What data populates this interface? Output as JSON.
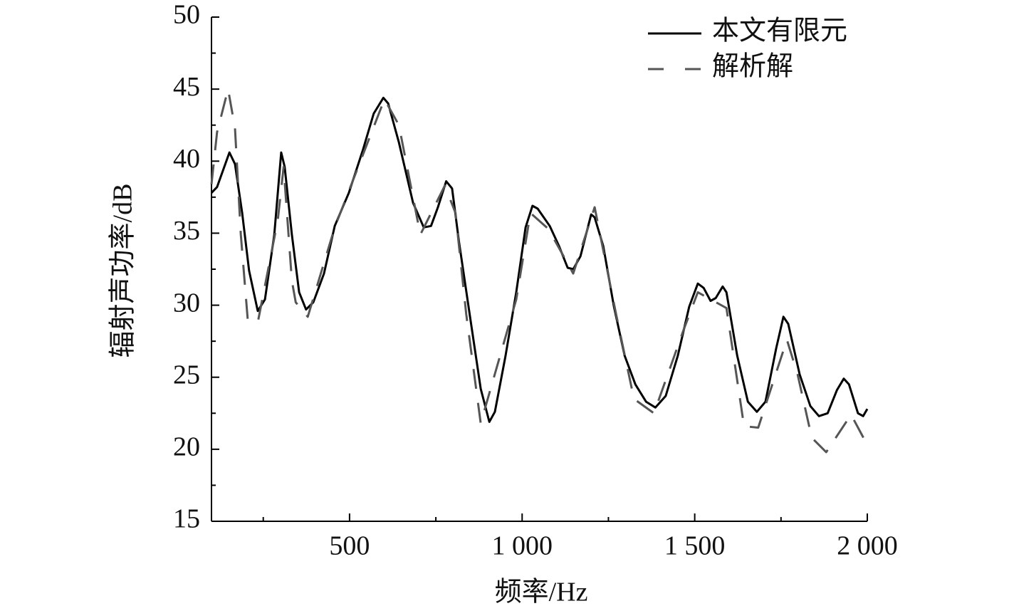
{
  "chart_data": {
    "type": "line",
    "xlabel": "频率/Hz",
    "ylabel": "辐射声功率/dB",
    "xlim": [
      100,
      2000
    ],
    "ylim": [
      15,
      50
    ],
    "xticks": [
      500,
      {
        "value": 1000,
        "label": "1 000"
      },
      {
        "value": 1500,
        "label": "1 500"
      },
      {
        "value": 2000,
        "label": "2 000"
      }
    ],
    "xminorticks": [
      250,
      750,
      1250,
      1750
    ],
    "yticks": [
      15,
      20,
      25,
      30,
      35,
      40,
      45,
      50
    ],
    "yminorticks": [
      17.5,
      22.5,
      27.5,
      32.5,
      37.5,
      42.5,
      47.5
    ],
    "legend": "upper right",
    "series": [
      {
        "name": "本文有限元",
        "color": "#000000",
        "style": "solid",
        "x": [
          100,
          116,
          152,
          168,
          189,
          209,
          234,
          255,
          282,
          302,
          312,
          333,
          354,
          374,
          395,
          426,
          457,
          498,
          539,
          570,
          598,
          612,
          643,
          684,
          715,
          736,
          756,
          780,
          797,
          817,
          849,
          880,
          905,
          921,
          952,
          983,
          1010,
          1030,
          1045,
          1080,
          1107,
          1132,
          1148,
          1169,
          1200,
          1210,
          1235,
          1266,
          1297,
          1328,
          1359,
          1386,
          1416,
          1451,
          1484,
          1509,
          1526,
          1546,
          1561,
          1581,
          1592,
          1623,
          1654,
          1680,
          1705,
          1736,
          1757,
          1771,
          1804,
          1835,
          1860,
          1885,
          1912,
          1932,
          1947,
          1973,
          1988,
          2000
        ],
        "values": [
          37.8,
          38.2,
          40.6,
          39.8,
          36.4,
          32.4,
          29.6,
          30.4,
          34.9,
          40.6,
          39.6,
          34.9,
          30.9,
          29.7,
          30.2,
          32.2,
          35.5,
          37.8,
          40.8,
          43.3,
          44.4,
          44.0,
          41.3,
          37.1,
          35.4,
          35.5,
          36.8,
          38.6,
          38.1,
          34.4,
          29.2,
          24.2,
          21.9,
          22.6,
          26.5,
          30.9,
          35.4,
          36.9,
          36.7,
          35.5,
          34.1,
          32.6,
          32.5,
          33.4,
          36.3,
          36.1,
          34.1,
          29.9,
          26.5,
          24.5,
          23.3,
          22.9,
          23.7,
          26.5,
          29.9,
          31.5,
          31.2,
          30.3,
          30.5,
          31.3,
          30.9,
          26.5,
          23.3,
          22.6,
          23.3,
          27.0,
          29.2,
          28.7,
          25.2,
          23.0,
          22.3,
          22.5,
          24.1,
          24.9,
          24.5,
          22.5,
          22.3,
          22.8
        ]
      },
      {
        "name": "解析解",
        "color": "#555555",
        "style": "dashed",
        "x": [
          100,
          116,
          148,
          168,
          185,
          205,
          234,
          292,
          309,
          333,
          344,
          379,
          457,
          601,
          643,
          705,
          776,
          807,
          838,
          880,
          983,
          1024,
          1076,
          1148,
          1210,
          1272,
          1324,
          1382,
          1468,
          1509,
          1592,
          1643,
          1684,
          1767,
          1798,
          1839,
          1881,
          1953,
          2000
        ],
        "values": [
          38.4,
          42.0,
          45.0,
          42.3,
          34.9,
          29.0,
          28.8,
          35.9,
          39.6,
          31.7,
          30.2,
          29.2,
          35.4,
          44.3,
          42.5,
          34.9,
          38.3,
          36.4,
          29.4,
          21.8,
          30.4,
          36.4,
          35.3,
          32.2,
          36.8,
          29.4,
          23.5,
          22.5,
          28.3,
          30.9,
          29.8,
          21.6,
          21.5,
          27.6,
          25.2,
          20.8,
          19.8,
          22.4,
          20.3
        ]
      }
    ]
  }
}
